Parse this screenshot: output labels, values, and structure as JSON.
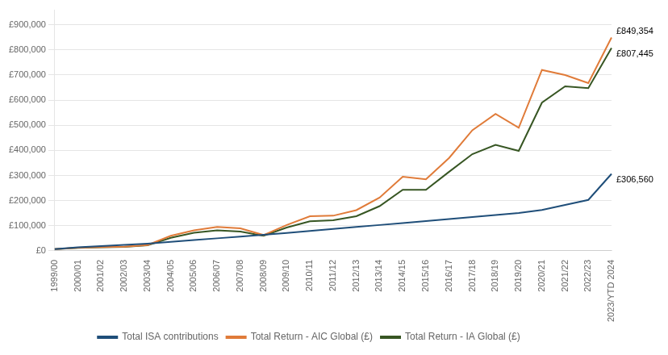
{
  "chart_data": {
    "type": "line",
    "categories": [
      "1999/00",
      "2000/01",
      "2001/02",
      "2002/03",
      "2003/04",
      "2004/05",
      "2005/06",
      "2006/07",
      "2007/08",
      "2008/09",
      "2009/10",
      "2010/11",
      "2011/12",
      "2012/13",
      "2013/14",
      "2014/15",
      "2015/16",
      "2016/17",
      "2017/18",
      "2018/19",
      "2019/20",
      "2020/21",
      "2021/22",
      "2022/23",
      "2023/YTD 2024"
    ],
    "series": [
      {
        "name": "Total ISA contributions",
        "color": "#1f4e79",
        "values": [
          7000,
          14000,
          19000,
          24000,
          29000,
          36000,
          43000,
          50000,
          57000,
          64000,
          71000,
          79000,
          87000,
          95000,
          103000,
          111000,
          119000,
          127000,
          135000,
          143000,
          151000,
          163000,
          183000,
          203000,
          306560
        ]
      },
      {
        "name": "Total Return - AIC Global (£)",
        "color": "#e07b39",
        "values": [
          7000,
          13000,
          15000,
          17000,
          23000,
          60000,
          82000,
          95000,
          90000,
          63000,
          103000,
          138000,
          140000,
          162000,
          212000,
          295000,
          285000,
          370000,
          480000,
          545000,
          490000,
          720000,
          700000,
          668000,
          849354
        ]
      },
      {
        "name": "Total Return - IA Global (£)",
        "color": "#375623",
        "values": [
          7000,
          12000,
          14000,
          16000,
          22000,
          52000,
          72000,
          82000,
          77000,
          60000,
          93000,
          118000,
          122000,
          138000,
          178000,
          243000,
          243000,
          315000,
          385000,
          422000,
          398000,
          590000,
          655000,
          648000,
          807445
        ]
      }
    ],
    "annotations": [
      {
        "text": "£849,354",
        "x": "2023/YTD 2024",
        "y": 849354
      },
      {
        "text": "£807,445",
        "x": "2023/YTD 2024",
        "y": 807445
      },
      {
        "text": "£306,560",
        "x": "2023/YTD 2024",
        "y": 306560
      }
    ],
    "ylim": [
      0,
      960000
    ],
    "yticks": [
      {
        "value": 0,
        "label": "£0"
      },
      {
        "value": 100000,
        "label": "£100,000"
      },
      {
        "value": 200000,
        "label": "£200,000"
      },
      {
        "value": 300000,
        "label": "£300,000"
      },
      {
        "value": 400000,
        "label": "£400,000"
      },
      {
        "value": 500000,
        "label": "£500,000"
      },
      {
        "value": 600000,
        "label": "£600,000"
      },
      {
        "value": 700000,
        "label": "£700,000"
      },
      {
        "value": 800000,
        "label": "£800,000"
      },
      {
        "value": 900000,
        "label": "£900,000"
      }
    ],
    "grid": true,
    "legend": "bottom"
  }
}
